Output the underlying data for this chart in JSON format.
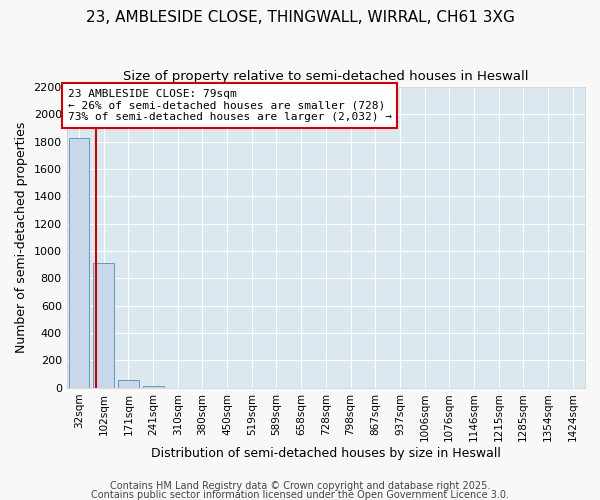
{
  "title_line1": "23, AMBLESIDE CLOSE, THINGWALL, WIRRAL, CH61 3XG",
  "title_line2": "Size of property relative to semi-detached houses in Heswall",
  "xlabel": "Distribution of semi-detached houses by size in Heswall",
  "ylabel": "Number of semi-detached properties",
  "bin_labels": [
    "32sqm",
    "102sqm",
    "171sqm",
    "241sqm",
    "310sqm",
    "380sqm",
    "450sqm",
    "519sqm",
    "589sqm",
    "658sqm",
    "728sqm",
    "798sqm",
    "867sqm",
    "937sqm",
    "1006sqm",
    "1076sqm",
    "1146sqm",
    "1215sqm",
    "1285sqm",
    "1354sqm",
    "1424sqm"
  ],
  "bar_heights": [
    1830,
    910,
    55,
    10,
    0,
    0,
    0,
    0,
    0,
    0,
    0,
    0,
    0,
    0,
    0,
    0,
    0,
    0,
    0,
    0,
    0
  ],
  "bar_color": "#c8d8ea",
  "bar_edge_color": "#6699bb",
  "property_line_x": 0.67,
  "annotation_text": "23 AMBLESIDE CLOSE: 79sqm\n← 26% of semi-detached houses are smaller (728)\n73% of semi-detached houses are larger (2,032) →",
  "annotation_box_color": "#ffffff",
  "annotation_box_edge_color": "#cc0000",
  "annotation_text_color": "#000000",
  "red_line_color": "#cc0000",
  "ylim": [
    0,
    2200
  ],
  "yticks": [
    0,
    200,
    400,
    600,
    800,
    1000,
    1200,
    1400,
    1600,
    1800,
    2000,
    2200
  ],
  "footer_line1": "Contains HM Land Registry data © Crown copyright and database right 2025.",
  "footer_line2": "Contains public sector information licensed under the Open Government Licence 3.0.",
  "bg_color": "#f8f8f8",
  "plot_bg_color": "#dce8f0"
}
